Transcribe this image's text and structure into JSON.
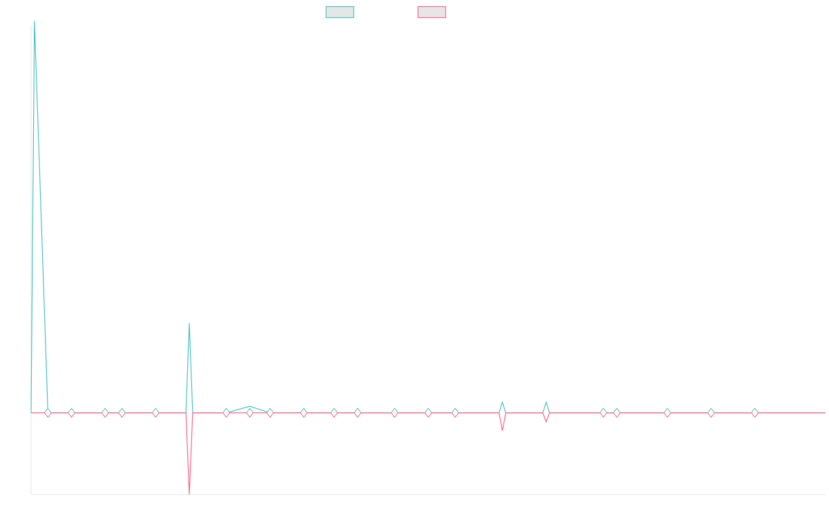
{
  "chart_data": {
    "type": "line",
    "title": "",
    "xlabel": "",
    "ylabel": "",
    "grid": false,
    "legend_position": "top",
    "ylim": [
      -1,
      4.75
    ],
    "x": [
      0,
      0.5,
      2.5,
      6,
      11,
      13.5,
      18.5,
      23,
      23.5,
      24,
      29,
      32.5,
      35.5,
      40.5,
      45,
      48.5,
      54,
      59,
      63,
      69.5,
      70,
      70.5,
      76,
      76.5,
      77,
      85,
      87,
      94.5,
      101,
      107.5,
      118
    ],
    "series": [
      {
        "color": "#4bc0c0",
        "values": [
          0,
          4.8,
          0,
          0,
          0,
          0,
          0,
          0,
          1.1,
          0,
          0,
          0.08,
          0,
          0,
          0,
          0,
          0,
          0,
          0,
          0,
          0.13,
          0,
          0,
          0.13,
          0,
          0,
          0,
          0,
          0,
          0,
          0
        ]
      },
      {
        "color": "#ff6384",
        "values": [
          0,
          0,
          0,
          0,
          0,
          0,
          0,
          0,
          -1,
          0,
          0,
          0,
          0,
          0,
          0,
          0,
          0,
          0,
          0,
          0,
          -0.22,
          0,
          0,
          -0.11,
          0,
          0,
          0,
          0,
          0,
          0,
          0
        ]
      }
    ],
    "markers": {
      "x": [
        2.5,
        6,
        11,
        13.5,
        18.5,
        29,
        32.5,
        35.5,
        40.5,
        45,
        48.5,
        54,
        59,
        63,
        85,
        87,
        94.5,
        101,
        107.5
      ]
    },
    "xlim": [
      0,
      118
    ]
  }
}
